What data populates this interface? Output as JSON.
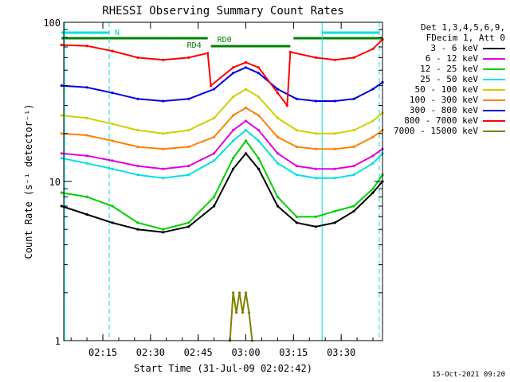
{
  "chart_data": {
    "type": "line",
    "title": "RHESSI Observing Summary Count Rates",
    "xlabel": "Start Time (31-Jul-09 02:02:42)",
    "ylabel": "Count Rate (s⁻¹ detector⁻¹)",
    "y_scale": "log",
    "ylim": [
      1,
      100
    ],
    "y_ticks": [
      {
        "value": 1,
        "label": "1"
      },
      {
        "value": 10,
        "label": "10"
      },
      {
        "value": 100,
        "label": "100"
      }
    ],
    "xlim": [
      "02:02:42",
      "03:43:00"
    ],
    "x_ticks": [
      "02:15",
      "02:30",
      "02:45",
      "03:00",
      "03:15",
      "03:30"
    ],
    "legend_header": [
      "Det 1,3,4,5,6,9,",
      "FDecim 1, Att 0"
    ],
    "legend_position": "right",
    "grid": false,
    "series": [
      {
        "name": "3 - 6 keV",
        "color": "#000000",
        "x": [
          "02:02",
          "02:10",
          "02:18",
          "02:26",
          "02:34",
          "02:42",
          "02:50",
          "02:56",
          "03:00",
          "03:04",
          "03:10",
          "03:16",
          "03:22",
          "03:28",
          "03:34",
          "03:40",
          "03:43"
        ],
        "y": [
          7,
          6.2,
          5.5,
          5,
          4.8,
          5.2,
          7,
          12,
          15,
          12,
          7,
          5.5,
          5.2,
          5.5,
          6.5,
          8.5,
          10
        ]
      },
      {
        "name": "6 - 12 keV",
        "color": "#e000e0",
        "x": [
          "02:02",
          "02:10",
          "02:18",
          "02:26",
          "02:34",
          "02:42",
          "02:50",
          "02:56",
          "03:00",
          "03:04",
          "03:10",
          "03:16",
          "03:22",
          "03:28",
          "03:34",
          "03:40",
          "03:43"
        ],
        "y": [
          15,
          14.5,
          13.5,
          12.5,
          12,
          12.5,
          15,
          21,
          24,
          21,
          15,
          12.5,
          12,
          12,
          12.5,
          14.5,
          16
        ]
      },
      {
        "name": "12 - 25 keV",
        "color": "#00d000",
        "x": [
          "02:02",
          "02:10",
          "02:18",
          "02:26",
          "02:34",
          "02:42",
          "02:50",
          "02:56",
          "03:00",
          "03:04",
          "03:10",
          "03:16",
          "03:22",
          "03:28",
          "03:34",
          "03:40",
          "03:43"
        ],
        "y": [
          8.5,
          8,
          7,
          5.5,
          5,
          5.5,
          8,
          14,
          18,
          14,
          8,
          6,
          6,
          6.5,
          7,
          9,
          11
        ]
      },
      {
        "name": "25 - 50 keV",
        "color": "#00e0e0",
        "x": [
          "02:02",
          "02:10",
          "02:18",
          "02:26",
          "02:34",
          "02:42",
          "02:50",
          "02:56",
          "03:00",
          "03:04",
          "03:10",
          "03:16",
          "03:22",
          "03:28",
          "03:34",
          "03:40",
          "03:43"
        ],
        "y": [
          14,
          13,
          12,
          11,
          10.5,
          11,
          13.5,
          18,
          21,
          18,
          13,
          11,
          10.5,
          10.5,
          11,
          13,
          15
        ]
      },
      {
        "name": "50 - 100 keV",
        "color": "#d0d000",
        "x": [
          "02:02",
          "02:10",
          "02:18",
          "02:26",
          "02:34",
          "02:42",
          "02:50",
          "02:56",
          "03:00",
          "03:04",
          "03:10",
          "03:16",
          "03:22",
          "03:28",
          "03:34",
          "03:40",
          "03:43"
        ],
        "y": [
          26,
          25,
          23,
          21,
          20,
          21,
          25,
          34,
          38,
          34,
          25,
          21,
          20,
          20,
          21,
          24,
          27
        ]
      },
      {
        "name": "100 - 300 keV",
        "color": "#ff8000",
        "x": [
          "02:02",
          "02:10",
          "02:18",
          "02:26",
          "02:34",
          "02:42",
          "02:50",
          "02:56",
          "03:00",
          "03:04",
          "03:10",
          "03:16",
          "03:22",
          "03:28",
          "03:34",
          "03:40",
          "03:43"
        ],
        "y": [
          20,
          19.5,
          18,
          16.5,
          16,
          16.5,
          19,
          26,
          29,
          26,
          19,
          16.5,
          16,
          16,
          16.5,
          19,
          21
        ]
      },
      {
        "name": "300 - 800 keV",
        "color": "#0000e0",
        "x": [
          "02:02",
          "02:10",
          "02:18",
          "02:26",
          "02:34",
          "02:42",
          "02:50",
          "02:56",
          "03:00",
          "03:04",
          "03:10",
          "03:16",
          "03:22",
          "03:28",
          "03:34",
          "03:40",
          "03:43"
        ],
        "y": [
          40,
          39,
          36,
          33,
          32,
          33,
          38,
          48,
          52,
          48,
          38,
          33,
          32,
          32,
          33,
          38,
          42
        ]
      },
      {
        "name": "800 - 7000 keV",
        "color": "#ff0000",
        "x": [
          "02:02",
          "02:10",
          "02:18",
          "02:26",
          "02:34",
          "02:42",
          "02:48",
          "02:49",
          "02:56",
          "03:00",
          "03:04",
          "03:10",
          "03:13",
          "03:14",
          "03:22",
          "03:28",
          "03:34",
          "03:40",
          "03:43"
        ],
        "y": [
          72,
          71,
          66,
          60,
          58,
          60,
          64,
          40,
          52,
          56,
          52,
          36,
          30,
          65,
          60,
          58,
          60,
          68,
          78
        ]
      },
      {
        "name": "7000 - 15000 keV",
        "color": "#808000",
        "x": [
          "02:55",
          "02:56",
          "02:57",
          "02:58",
          "02:59",
          "03:00",
          "03:01",
          "03:02"
        ],
        "y": [
          1,
          2,
          1.5,
          2,
          1.5,
          2,
          1.5,
          1
        ]
      }
    ],
    "annotations": [
      {
        "text": "N",
        "color": "#00c8c8"
      },
      {
        "text": "RD4",
        "color": "#008000"
      },
      {
        "text": "RD0",
        "color": "#008000"
      }
    ],
    "state_bars": {
      "N": {
        "color": "#00e0e0",
        "intervals": [
          [
            "02:02",
            "02:17"
          ],
          [
            "03:24",
            "03:42"
          ]
        ]
      },
      "RD": {
        "color": "#008000",
        "intervals": [
          [
            "02:02",
            "02:48"
          ],
          [
            "02:49",
            "03:14"
          ],
          [
            "03:15",
            "03:43"
          ]
        ]
      }
    },
    "vertical_lines": [
      {
        "x": "02:17",
        "style": "dashed",
        "color": "#00e0e0"
      },
      {
        "x": "03:24",
        "style": "solid",
        "color": "#00e0e0"
      },
      {
        "x": "03:42",
        "style": "dashed",
        "color": "#00e0e0"
      }
    ],
    "timestamp": "15-Oct-2021 09:20"
  }
}
